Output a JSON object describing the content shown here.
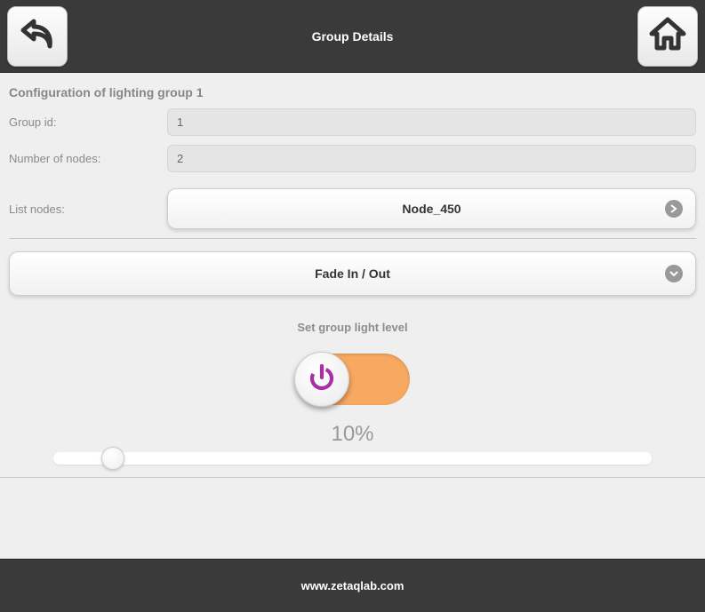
{
  "header": {
    "title": "Group Details",
    "colors": {
      "bg": "#3a3a3a",
      "text": "#ffffff"
    }
  },
  "config": {
    "section_title": "Configuration of lighting group 1",
    "group_id_label": "Group id:",
    "group_id_value": "1",
    "node_count_label": "Number of nodes:",
    "node_count_value": "2",
    "list_nodes_label": "List nodes:",
    "selected_node": "Node_450"
  },
  "fade": {
    "label": "Fade In / Out"
  },
  "light": {
    "title": "Set group light level",
    "percent": "10%",
    "slider_value_pct": 10,
    "toggle_on_color": "#f7a861",
    "knob_icon_color": "#a92fa6"
  },
  "footer": {
    "text": "www.zetaqlab.com"
  },
  "colors": {
    "page_bg": "#efefef",
    "label_text": "#8a8a8a",
    "input_bg": "#e5e5e5",
    "input_border": "#d5d5d5",
    "button_border": "#cccccc",
    "divider": "#c8c8c8",
    "percent_text": "#999999"
  }
}
